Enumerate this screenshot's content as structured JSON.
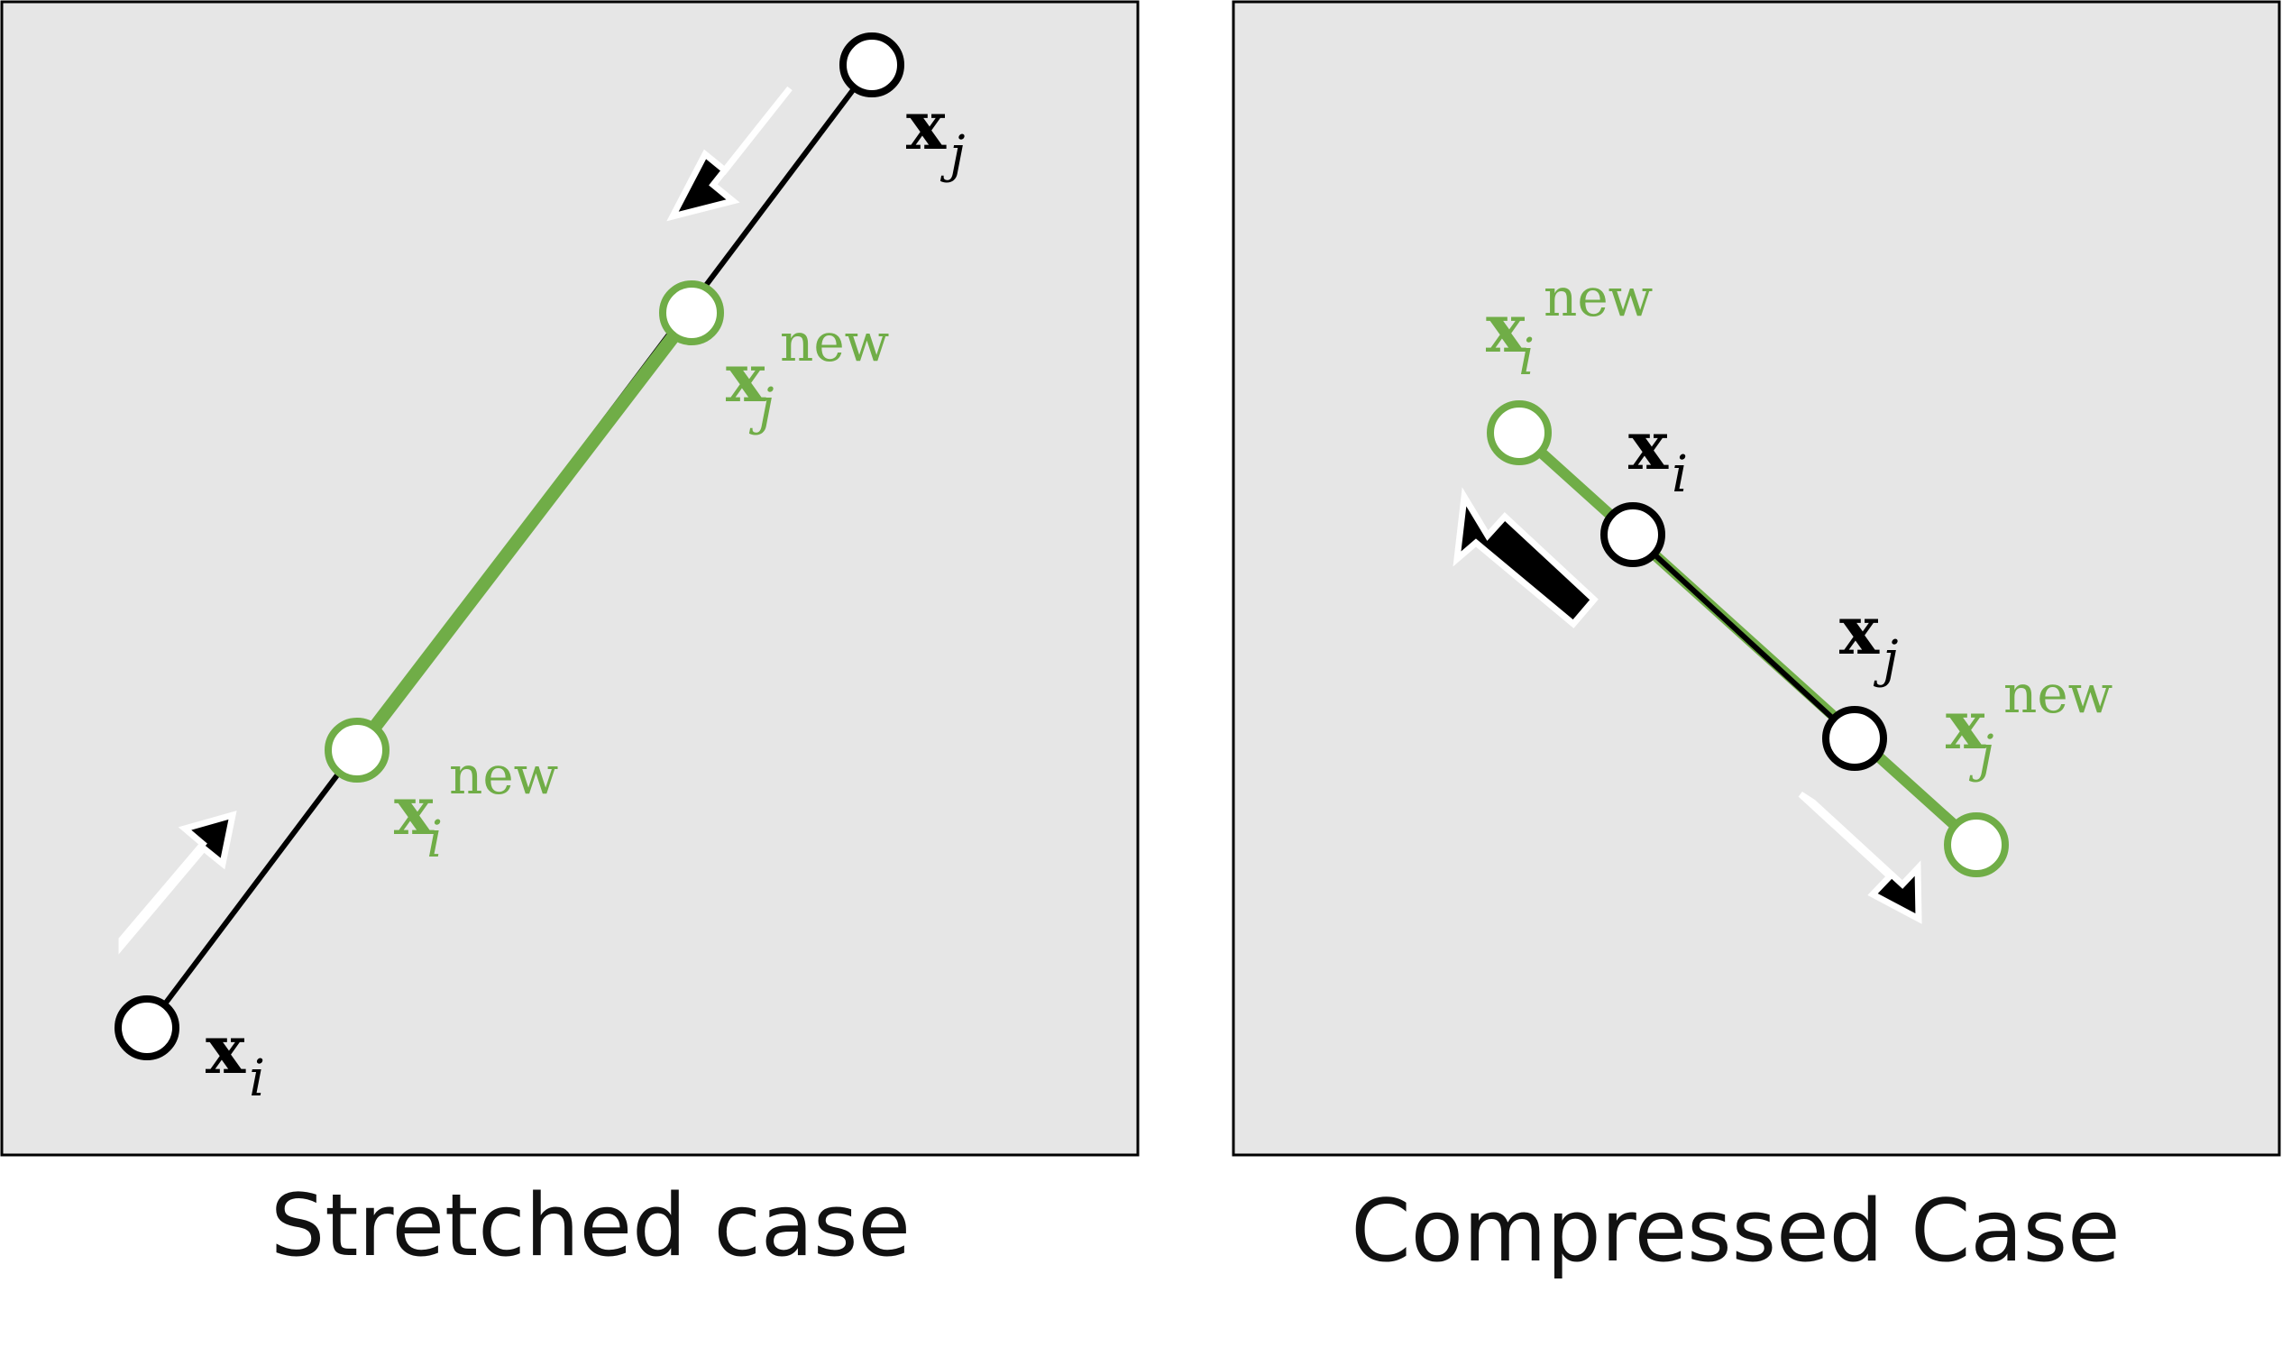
{
  "colors": {
    "panel": "#e6e6e6",
    "green": "#70ad47",
    "black": "#000000",
    "white": "#ffffff"
  },
  "panels": [
    {
      "caption": "Stretched case",
      "labels": {
        "xj_base": "x",
        "xj_sub": "j",
        "xjnew_base": "x",
        "xjnew_sub": "j",
        "xjnew_sup": "new",
        "xinew_base": "x",
        "xinew_sub": "i",
        "xinew_sup": "new",
        "xi_base": "x",
        "xi_sub": "i"
      }
    },
    {
      "caption": "Compressed Case",
      "labels": {
        "xinew_base": "x",
        "xinew_sub": "i",
        "xinew_sup": "new",
        "xi_base": "x",
        "xi_sub": "i",
        "xj_base": "x",
        "xj_sub": "j",
        "xjnew_base": "x",
        "xjnew_sub": "j",
        "xjnew_sup": "new"
      }
    }
  ]
}
